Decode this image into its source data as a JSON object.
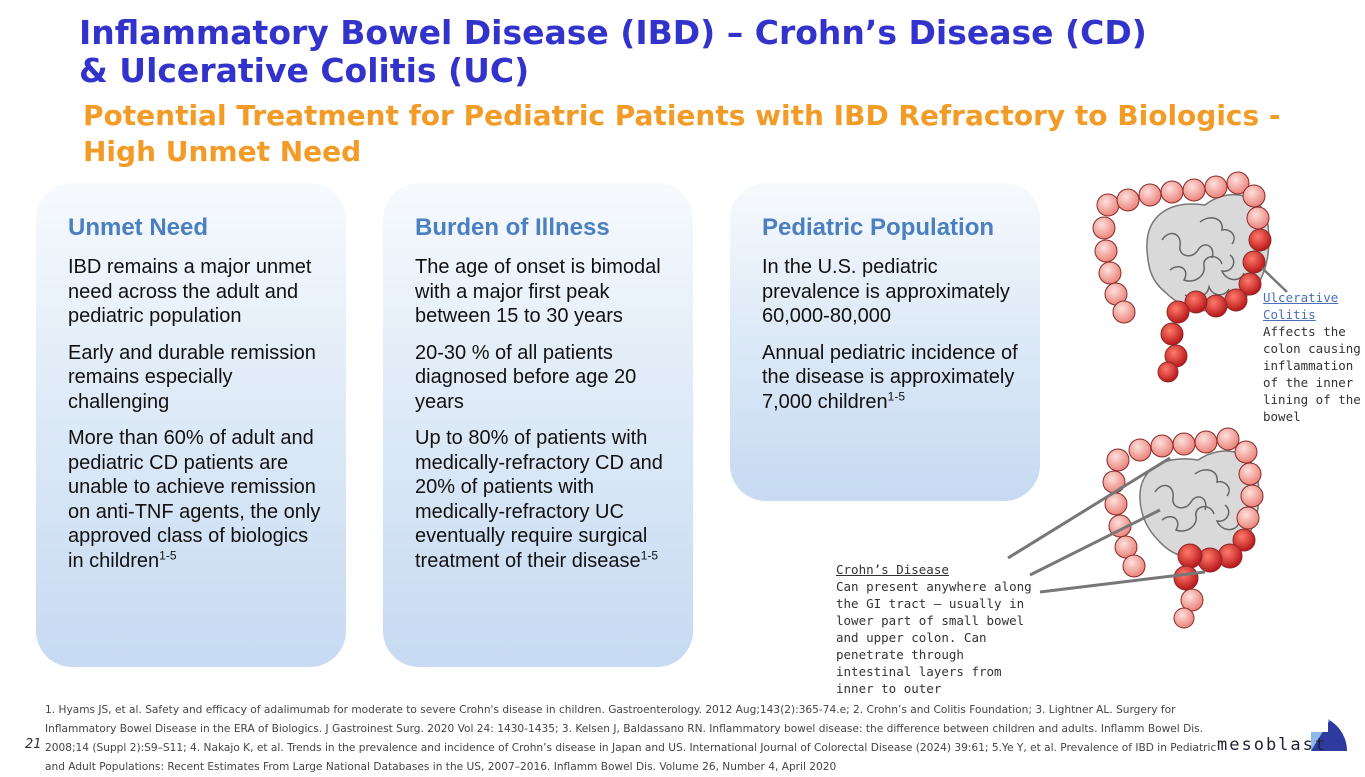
{
  "title": "Inflammatory Bowel Disease (IBD) – Crohn’s Disease (CD) & Ulcerative Colitis (UC)",
  "subtitle": "Potential Treatment for Pediatric Patients with IBD Refractory to Biologics - High Unmet Need",
  "cards": [
    {
      "heading": "Unmet Need",
      "paragraphs": [
        "IBD remains a major unmet need across the adult and pediatric population",
        "Early and durable remission remains especially challenging",
        "More than 60% of adult and pediatric CD patients are unable to achieve remission on anti-TNF agents, the only approved class of biologics in children"
      ],
      "sup": "1-5"
    },
    {
      "heading": "Burden of Illness",
      "paragraphs": [
        "The age of onset is bimodal with a major first peak between 15 to 30 years",
        "20-30 % of all patients diagnosed before age 20 years",
        "Up to 80% of patients with medically-refractory CD and 20% of patients with medically-refractory UC eventually require surgical treatment of their disease"
      ],
      "sup": "1-5"
    },
    {
      "heading": "Pediatric Population",
      "paragraphs": [
        "In the U.S. pediatric prevalence is approximately 60,000-80,000",
        "Annual pediatric incidence of the disease is approximately 7,000 children"
      ],
      "sup": "1-5"
    }
  ],
  "annotations": {
    "uc": {
      "heading": "Ulcerative Colitis",
      "text": "Affects the colon causing inflammation of the inner lining of the bowel"
    },
    "cd": {
      "heading": "Crohn’s Disease",
      "text": "Can present anywhere along the GI tract – usually in lower part of small bowel and upper colon. Can penetrate through intestinal layers from inner to outer"
    }
  },
  "references": "1. Hyams JS, et al. Safety and efficacy of adalimumab for moderate to severe Crohn's disease in children. Gastroenterology. 2012 Aug;143(2):365-74.e; 2. Crohn’s and Colitis Foundation; 3. Lightner AL. Surgery for Inflammatory Bowel Disease in the ERA of Biologics. J Gastroinest Surg. 2020 Vol 24: 1430-1435; 3. Kelsen J, Baldassano RN. Inflammatory bowel disease: the difference between children and adults. Inflamm Bowel Dis. 2008;14 (Suppl 2):S9–S11; 4. Nakajo K, et al. Trends in the prevalence and incidence of Crohn’s disease in Japan and US. International Journal of Colorectal Disease (2024) 39:61; 5.Ye Y, et al. Prevalence of IBD in Pediatric and Adult Populations: Recent Estimates From Large National Databases in the US, 2007–2016. Inflamm Bowel Dis. Volume 26, Number 4, April 2020",
  "page_number": "21",
  "brand": "mesoblast",
  "colors": {
    "title": "#3333cc",
    "subtitle": "#f29b26",
    "card_heading": "#4a7fc0",
    "colon_healthy": "#f28c86",
    "colon_inflamed": "#c81e1e"
  }
}
